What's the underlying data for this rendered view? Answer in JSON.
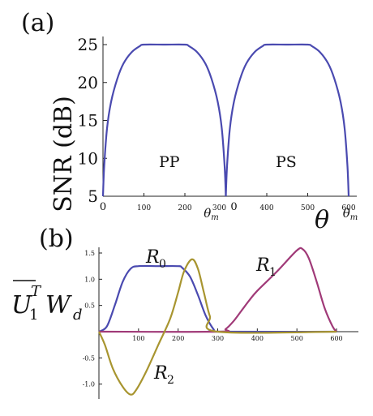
{
  "chart_data": [
    {
      "panel_label": "(a)",
      "type": "line",
      "ylabel": "SNR (dB)",
      "xlabel": "θ",
      "ylim": [
        5,
        25
      ],
      "yticks": [
        "5",
        "10",
        "15",
        "20",
        "25"
      ],
      "xticks": [
        "0",
        "100",
        "200",
        "300",
        "0",
        "400",
        "500",
        "600"
      ],
      "xtick_theta_labels": [
        "θm",
        "θm"
      ],
      "annotations": [
        "PP",
        "PS"
      ],
      "grid": false,
      "color": "#4a4ab0",
      "series": [
        {
          "x": [
            0,
            3,
            10,
            20,
            35,
            50,
            70,
            90,
            100,
            150,
            200,
            210,
            230,
            250,
            265,
            280,
            290,
            297,
            300
          ],
          "y": [
            5,
            9,
            14,
            17.5,
            20.5,
            22.5,
            24,
            24.8,
            25,
            25,
            25,
            24.8,
            24,
            22.5,
            20.5,
            17.5,
            14,
            9,
            5
          ]
        },
        {
          "x": [
            300,
            303,
            310,
            320,
            335,
            350,
            370,
            390,
            400,
            450,
            500,
            510,
            530,
            550,
            565,
            580,
            590,
            597,
            600
          ],
          "y": [
            5,
            9,
            14,
            17.5,
            20.5,
            22.5,
            24,
            24.8,
            25,
            25,
            25,
            24.8,
            24,
            22.5,
            20.5,
            17.5,
            14,
            9,
            5
          ]
        }
      ]
    },
    {
      "panel_label": "(b)",
      "type": "line",
      "ylabel": "U̅₁ᵀ W_d",
      "ylim": [
        -1.5,
        1.5
      ],
      "yticks": [
        "1.5",
        "1.0",
        "0.5",
        "-0.5",
        "-1.0"
      ],
      "xticks": [
        "100",
        "200",
        "300",
        "400",
        "500",
        "600"
      ],
      "grid": false,
      "series": [
        {
          "name": "R0",
          "color": "#4a4ab0",
          "x": [
            0,
            20,
            40,
            60,
            80,
            100,
            150,
            200,
            210,
            230,
            250,
            270,
            290,
            300,
            600
          ],
          "y": [
            0,
            0.1,
            0.5,
            0.95,
            1.2,
            1.25,
            1.25,
            1.25,
            1.22,
            1.05,
            0.7,
            0.3,
            0.04,
            0,
            0
          ]
        },
        {
          "name": "R1",
          "color": "#a03a78",
          "x": [
            0,
            300,
            320,
            340,
            360,
            380,
            400,
            450,
            500,
            515,
            530,
            550,
            570,
            590,
            600
          ],
          "y": [
            0,
            0,
            0.05,
            0.2,
            0.4,
            0.6,
            0.78,
            1.15,
            1.55,
            1.57,
            1.4,
            0.95,
            0.45,
            0.1,
            0
          ]
        },
        {
          "name": "R2",
          "color": "#a89530",
          "x": [
            0,
            15,
            35,
            60,
            80,
            95,
            120,
            150,
            180,
            200,
            215,
            235,
            250,
            265,
            280,
            300,
            600
          ],
          "y": [
            0,
            -0.25,
            -0.7,
            -1.05,
            -1.2,
            -1.1,
            -0.75,
            -0.25,
            0.25,
            0.75,
            1.15,
            1.38,
            1.2,
            0.75,
            0.3,
            0,
            0
          ]
        }
      ]
    }
  ]
}
